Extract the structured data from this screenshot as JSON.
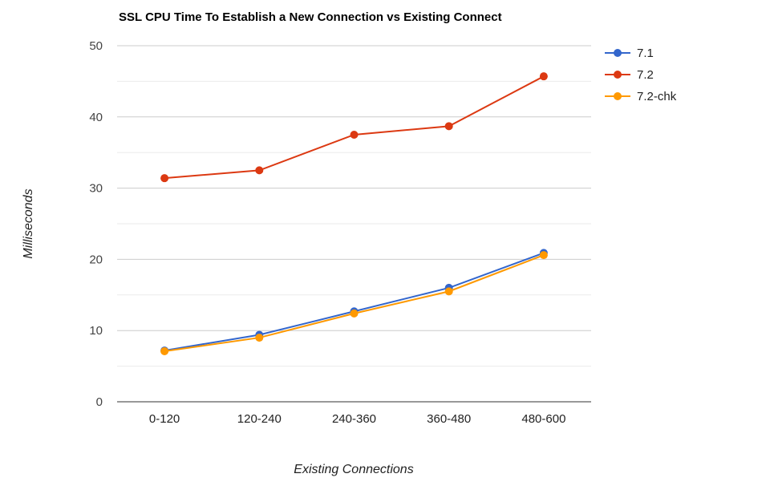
{
  "chart_data": {
    "type": "line",
    "title": "SSL CPU Time To Establish a New Connection vs Existing Connect",
    "xlabel": "Existing Connections",
    "ylabel": "Milliseconds",
    "categories": [
      "0-120",
      "120-240",
      "240-360",
      "360-480",
      "480-600"
    ],
    "ylim": [
      0,
      50
    ],
    "yticks": [
      0,
      10,
      20,
      30,
      40,
      50
    ],
    "grid": true,
    "minor_grid": true,
    "legend_position": "right",
    "series": [
      {
        "name": "7.1",
        "color": "#3366cc",
        "values": [
          7.2,
          9.4,
          12.7,
          16.0,
          20.9
        ]
      },
      {
        "name": "7.2",
        "color": "#dc3912",
        "values": [
          31.4,
          32.5,
          37.5,
          38.7,
          45.7
        ]
      },
      {
        "name": "7.2-chk",
        "color": "#ff9900",
        "values": [
          7.1,
          9.0,
          12.4,
          15.5,
          20.6
        ]
      }
    ]
  }
}
